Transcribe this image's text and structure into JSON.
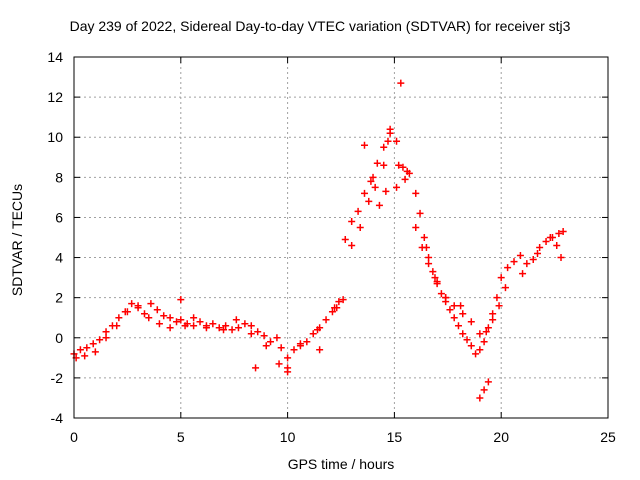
{
  "chart_data": {
    "type": "scatter",
    "title": "Day 239 of 2022, Sidereal Day-to-day VTEC variation (SDTVAR) for receiver stj3",
    "xlabel": "GPS time / hours",
    "ylabel": "SDTVAR / TECUs",
    "xlim": [
      0,
      25
    ],
    "ylim": [
      -4,
      14
    ],
    "xticks": [
      "0",
      "5",
      "10",
      "15",
      "20",
      "25"
    ],
    "yticks": [
      "-4",
      "-2",
      "0",
      "2",
      "4",
      "6",
      "8",
      "10",
      "12",
      "14"
    ],
    "grid": true,
    "marker": "+",
    "color": "#ff0000",
    "series": [
      {
        "name": "SDTVAR",
        "x": [
          0.0,
          0.3,
          0.6,
          0.9,
          1.2,
          1.5,
          1.8,
          2.1,
          2.4,
          2.7,
          3.0,
          3.3,
          3.6,
          3.9,
          4.2,
          4.5,
          4.8,
          5.0,
          5.3,
          5.6,
          5.9,
          6.2,
          6.5,
          6.8,
          7.1,
          7.4,
          7.7,
          8.0,
          8.3,
          8.6,
          8.9,
          9.2,
          9.5,
          9.7,
          10.0,
          10.3,
          10.6,
          10.9,
          11.2,
          11.5,
          11.8,
          12.1,
          12.4,
          12.7,
          13.0,
          13.3,
          13.6,
          13.9,
          14.2,
          14.5,
          14.8,
          15.1,
          15.4,
          15.7,
          16.0,
          16.2,
          16.4,
          16.6,
          16.8,
          17.0,
          17.2,
          17.4,
          17.6,
          17.8,
          18.0,
          18.2,
          18.4,
          18.6,
          18.8,
          19.0,
          19.2,
          19.4,
          19.6,
          19.8,
          20.0,
          20.3,
          20.6,
          20.9,
          21.2,
          21.5,
          21.8,
          22.1,
          22.4,
          22.7,
          22.9,
          0.1,
          0.5,
          1.0,
          1.5,
          2.0,
          2.5,
          3.0,
          3.5,
          4.0,
          4.5,
          5.2,
          5.6,
          6.2,
          7.0,
          7.6,
          8.3,
          9.0,
          9.6,
          10.0,
          10.6,
          11.4,
          12.2,
          12.6,
          13.0,
          13.4,
          13.8,
          14.1,
          14.5,
          14.7,
          15.2,
          15.6,
          16.0,
          16.3,
          16.6,
          17.0,
          17.4,
          17.8,
          18.2,
          18.6,
          19.0,
          19.3,
          19.6,
          19.9,
          20.2,
          21.0,
          21.7,
          22.3,
          22.6,
          22.8,
          13.6,
          14.0,
          14.3,
          14.6,
          14.8,
          15.3,
          15.5,
          19.0,
          19.2,
          19.4,
          15.1,
          5.0,
          8.5,
          10.0,
          11.5,
          12.3,
          16.5,
          16.9,
          17.4,
          18.1
        ],
        "y": [
          -0.8,
          -0.6,
          -0.5,
          -0.3,
          -0.1,
          0.3,
          0.6,
          1.0,
          1.3,
          1.7,
          1.5,
          1.2,
          1.7,
          1.4,
          1.1,
          1.0,
          0.8,
          0.9,
          0.7,
          0.6,
          0.8,
          0.6,
          0.7,
          0.5,
          0.6,
          0.4,
          0.5,
          0.7,
          0.6,
          0.3,
          0.1,
          -0.2,
          0.0,
          -0.5,
          -1.0,
          -0.6,
          -0.4,
          -0.2,
          0.2,
          0.5,
          0.9,
          1.3,
          1.8,
          4.9,
          5.8,
          6.3,
          7.2,
          7.8,
          8.7,
          9.5,
          10.2,
          9.8,
          8.5,
          8.2,
          7.2,
          6.2,
          5.0,
          4.0,
          3.3,
          2.7,
          2.2,
          1.8,
          1.4,
          1.0,
          0.6,
          0.2,
          -0.1,
          -0.4,
          -0.8,
          -0.6,
          -0.2,
          0.5,
          1.2,
          2.0,
          3.0,
          3.5,
          3.8,
          4.1,
          3.7,
          3.9,
          4.5,
          4.8,
          5.0,
          5.2,
          5.3,
          -1.0,
          -0.9,
          -0.7,
          0.0,
          0.6,
          1.3,
          1.6,
          1.0,
          0.7,
          0.5,
          0.6,
          1.0,
          0.5,
          0.4,
          0.9,
          0.2,
          -0.4,
          -1.3,
          -1.5,
          -0.3,
          0.4,
          1.5,
          1.9,
          4.6,
          5.5,
          6.8,
          7.5,
          8.6,
          9.8,
          8.6,
          8.3,
          5.5,
          4.5,
          3.7,
          2.8,
          2.0,
          1.6,
          1.2,
          0.8,
          0.2,
          0.3,
          0.9,
          1.6,
          2.5,
          3.2,
          4.2,
          5.0,
          4.6,
          4.0,
          9.6,
          8.0,
          6.6,
          7.3,
          10.4,
          12.7,
          7.9,
          -3.0,
          -2.6,
          -2.2,
          7.5,
          1.9,
          -1.5,
          -1.7,
          -0.6,
          1.5,
          4.5,
          3.0,
          2.0,
          1.6
        ]
      }
    ]
  }
}
